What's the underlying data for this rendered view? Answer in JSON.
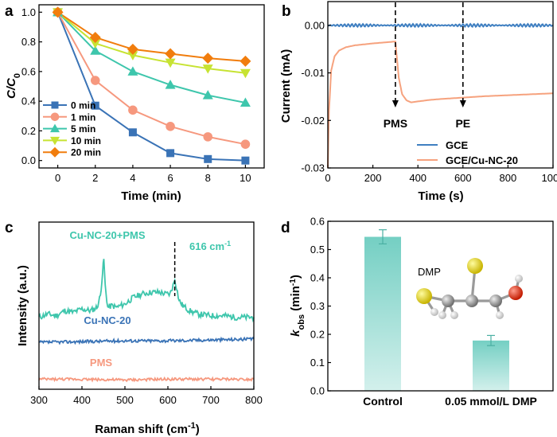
{
  "chart_data": [
    {
      "panel": "a",
      "type": "line",
      "xlabel": "Time (min)",
      "ylabel": "C/C₀",
      "x": [
        0,
        2,
        4,
        6,
        8,
        10
      ],
      "xlim": [
        -1,
        11
      ],
      "ylim": [
        -0.05,
        1.05
      ],
      "xticks": [
        0,
        2,
        4,
        6,
        8,
        10
      ],
      "yticks": [
        0.0,
        0.2,
        0.4,
        0.6,
        0.8,
        1.0
      ],
      "legend_position": "bottom-left",
      "series": [
        {
          "name": "0 min",
          "color": "#3a73b6",
          "marker": "square",
          "values": [
            1.0,
            0.37,
            0.19,
            0.05,
            0.01,
            0.0
          ]
        },
        {
          "name": "1 min",
          "color": "#f6987e",
          "marker": "circle",
          "values": [
            1.0,
            0.54,
            0.34,
            0.23,
            0.16,
            0.11
          ]
        },
        {
          "name": "5 min",
          "color": "#3ec6ac",
          "marker": "triangle",
          "values": [
            1.0,
            0.74,
            0.6,
            0.51,
            0.44,
            0.39
          ]
        },
        {
          "name": "10 min",
          "color": "#c7e333",
          "marker": "triangle-down",
          "values": [
            1.0,
            0.79,
            0.71,
            0.66,
            0.62,
            0.59
          ]
        },
        {
          "name": "20 min",
          "color": "#f17d0d",
          "marker": "diamond",
          "values": [
            1.0,
            0.83,
            0.75,
            0.72,
            0.69,
            0.67
          ]
        }
      ]
    },
    {
      "panel": "b",
      "type": "line",
      "xlabel": "Time (s)",
      "ylabel": "Current (mA)",
      "xlim": [
        0,
        1000
      ],
      "ylim": [
        -0.03,
        0.005
      ],
      "xticks": [
        0,
        200,
        400,
        600,
        800,
        1000
      ],
      "yticks": [
        0.0,
        -0.01,
        -0.02,
        -0.03
      ],
      "ytick_labels": [
        "0.00",
        "-0.01",
        "-0.02",
        "-0.03"
      ],
      "legend_position": "bottom-right",
      "annotations": [
        {
          "label": "PMS",
          "x": 300
        },
        {
          "label": "PE",
          "x": 600
        }
      ],
      "series": [
        {
          "name": "GCE",
          "color": "#3f7fc1",
          "x": [
            0,
            100,
            200,
            300,
            400,
            500,
            600,
            700,
            800,
            900,
            1000
          ],
          "values": [
            0.0,
            0.0,
            0.0,
            0.0,
            0.0,
            0.0,
            0.0,
            0.0,
            0.0,
            0.0,
            0.0
          ]
        },
        {
          "name": "GCE/Cu-NC-20",
          "color": "#f6a27e",
          "x": [
            0,
            5,
            15,
            30,
            50,
            80,
            120,
            160,
            200,
            250,
            300,
            305,
            315,
            330,
            350,
            370,
            400,
            450,
            500,
            600,
            700,
            800,
            900,
            1000
          ],
          "values": [
            -0.03,
            -0.018,
            -0.0095,
            -0.0065,
            -0.0053,
            -0.0046,
            -0.0042,
            -0.004,
            -0.0038,
            -0.0036,
            -0.0034,
            -0.006,
            -0.011,
            -0.0145,
            -0.0158,
            -0.0162,
            -0.016,
            -0.0157,
            -0.0155,
            -0.0152,
            -0.0149,
            -0.0147,
            -0.0145,
            -0.0143
          ]
        }
      ]
    },
    {
      "panel": "c",
      "type": "line",
      "xlabel": "Raman shift (cm⁻¹)",
      "ylabel": "Intensity (a.u.)",
      "xlim": [
        300,
        800
      ],
      "xticks": [
        300,
        400,
        500,
        600,
        700,
        800
      ],
      "ylim": [
        0,
        1
      ],
      "annotations": [
        {
          "label": "616 cm⁻¹",
          "x": 616
        }
      ],
      "series": [
        {
          "name": "Cu-NC-20+PMS",
          "color": "#3ec6ac",
          "label": "Cu-NC-20+PMS",
          "x": [
            300,
            320,
            340,
            360,
            380,
            400,
            420,
            435,
            443,
            448,
            451,
            454,
            460,
            470,
            480,
            500,
            520,
            540,
            560,
            580,
            595,
            605,
            612,
            616,
            620,
            626,
            635,
            650,
            670,
            700,
            730,
            760,
            800
          ],
          "values": [
            0.43,
            0.45,
            0.44,
            0.47,
            0.46,
            0.48,
            0.47,
            0.49,
            0.56,
            0.7,
            0.78,
            0.62,
            0.49,
            0.5,
            0.49,
            0.51,
            0.55,
            0.57,
            0.58,
            0.58,
            0.57,
            0.57,
            0.62,
            0.66,
            0.61,
            0.53,
            0.5,
            0.47,
            0.45,
            0.44,
            0.44,
            0.43,
            0.43
          ]
        },
        {
          "name": "Cu-NC-20",
          "color": "#3a73b6",
          "label": "Cu-NC-20",
          "x": [
            300,
            400,
            500,
            600,
            700,
            800
          ],
          "values": [
            0.28,
            0.285,
            0.29,
            0.29,
            0.295,
            0.3
          ]
        },
        {
          "name": "PMS",
          "color": "#f6987e",
          "label": "PMS",
          "x": [
            300,
            400,
            500,
            600,
            700,
            800
          ],
          "values": [
            0.06,
            0.06,
            0.055,
            0.06,
            0.06,
            0.06
          ]
        }
      ]
    },
    {
      "panel": "d",
      "type": "bar",
      "ylabel": "kobs (min⁻¹)",
      "categories": [
        "Control",
        "0.05 mmol/L DMP"
      ],
      "values": [
        0.545,
        0.178
      ],
      "errors": [
        0.025,
        0.018
      ],
      "ylim": [
        0,
        0.6
      ],
      "yticks": [
        0.0,
        0.1,
        0.2,
        0.3,
        0.4,
        0.5,
        0.6
      ],
      "inset_label": "DMP",
      "bar_color": "#7dd3c8"
    }
  ],
  "panels": {
    "a": {
      "letter": "a",
      "xlabel": "Time (min)",
      "xtick_labels": [
        "0",
        "2",
        "4",
        "6",
        "8",
        "10"
      ],
      "ytick_labels": [
        "0.0",
        "0.2",
        "0.4",
        "0.6",
        "0.8",
        "1.0"
      ],
      "legend": [
        "0 min",
        "1 min",
        "5 min",
        "10 min",
        "20 min"
      ]
    },
    "b": {
      "letter": "b",
      "xlabel": "Time (s)",
      "ylabel": "Current (mA)",
      "xtick_labels": [
        "0",
        "200",
        "400",
        "600",
        "800",
        "1000"
      ],
      "ytick_labels": [
        "0.00",
        "-0.01",
        "-0.02",
        "-0.03"
      ],
      "legend": [
        "GCE",
        "GCE/Cu-NC-20"
      ],
      "annotation_pms": "PMS",
      "annotation_pe": "PE"
    },
    "c": {
      "letter": "c",
      "ylabel": "Intensity (a.u.)",
      "xtick_labels": [
        "300",
        "400",
        "500",
        "600",
        "700",
        "800"
      ],
      "label_top": "Cu-NC-20+PMS",
      "label_mid": "Cu-NC-20",
      "label_bottom": "PMS",
      "peak_label": "616 cm"
    },
    "d": {
      "letter": "d",
      "ytick_labels": [
        "0.0",
        "0.1",
        "0.2",
        "0.3",
        "0.4",
        "0.5",
        "0.6"
      ],
      "categories": [
        "Control",
        "0.05 mmol/L DMP"
      ],
      "inset_label": "DMP"
    }
  }
}
